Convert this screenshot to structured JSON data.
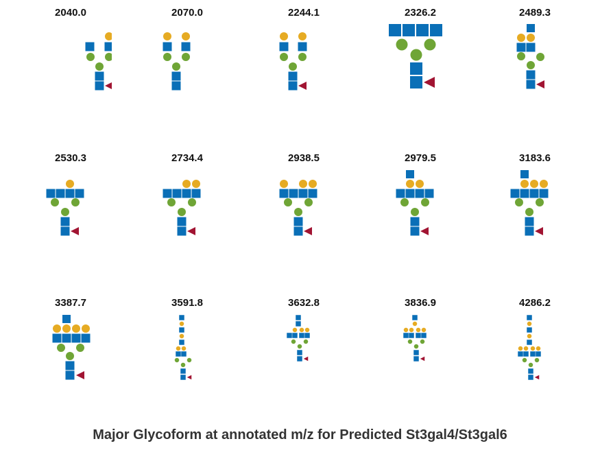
{
  "caption": "Major Glycoform at annotated m/z for Predicted St3gal4/St3gal6",
  "colors": {
    "glcnac": "#0a6fb7",
    "galactose": "#e6ab23",
    "mannose": "#6fa536",
    "fucose": "#a11432"
  },
  "glycoforms": [
    {
      "mz": "2040.0",
      "structure": "biantennary, one galactose, core fucose"
    },
    {
      "mz": "2070.0",
      "structure": "biantennary, two galactose"
    },
    {
      "mz": "2244.1",
      "structure": "biantennary, two galactose, core fucose"
    },
    {
      "mz": "2326.2",
      "structure": "bisected-like, four GlcNAc, core fucose"
    },
    {
      "mz": "2489.3",
      "structure": "biantennary, two galactose, LacNAc extension, core fucose"
    },
    {
      "mz": "2530.3",
      "structure": "four GlcNAc, one galactose, core fucose"
    },
    {
      "mz": "2734.4",
      "structure": "four GlcNAc, two galactose, core fucose"
    },
    {
      "mz": "2938.5",
      "structure": "four GlcNAc, three galactose, core fucose"
    },
    {
      "mz": "2979.5",
      "structure": "four GlcNAc, two galactose, extension, core fucose"
    },
    {
      "mz": "3183.6",
      "structure": "four GlcNAc, three galactose, extension, core fucose"
    },
    {
      "mz": "3387.7",
      "structure": "four GlcNAc, four galactose, extension, core fucose"
    },
    {
      "mz": "3591.8",
      "structure": "long poly-LacNAc extension, core fucose"
    },
    {
      "mz": "3632.8",
      "structure": "tetraantennary, three galactose, extension, core fucose"
    },
    {
      "mz": "3836.9",
      "structure": "tetraantennary, four galactose, extension, core fucose"
    },
    {
      "mz": "4286.2",
      "structure": "tetraantennary, four galactose, long extension, core fucose"
    }
  ]
}
